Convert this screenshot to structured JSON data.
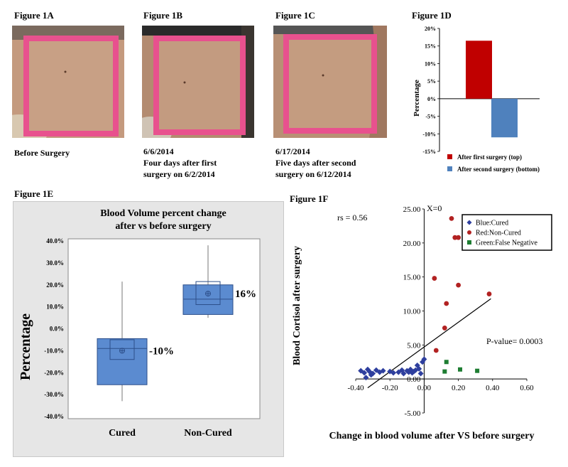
{
  "fig1a": {
    "title": "Figure 1A",
    "caption": "Before Surgery"
  },
  "fig1b": {
    "title": "Figure 1B",
    "caption_lines": [
      "6/6/2014",
      "Four days after first",
      "surgery on 6/2/2014"
    ]
  },
  "fig1c": {
    "title": "Figure 1C",
    "caption_lines": [
      "6/17/2014",
      "Five days after second",
      "surgery on 6/12/2014"
    ]
  },
  "fig1d": {
    "title": "Figure 1D"
  },
  "fig1e": {
    "title": "Figure 1E"
  },
  "fig1f": {
    "title": "Figure 1F"
  },
  "colors": {
    "red": "#c00000",
    "blue": "#4f81bd",
    "box_blue": "#5b8bd0",
    "green": "#1e7d32",
    "panel_gray": "#e6e6e6",
    "tape_pink": "#e8518e"
  },
  "chart_data": [
    {
      "id": "1D",
      "type": "bar",
      "categories": [
        "After first surgery (top)",
        "After second surgery (bottom)"
      ],
      "values": [
        16.5,
        -11
      ],
      "series_colors": [
        "#c00000",
        "#4f81bd"
      ],
      "ylabel": "Percentage",
      "ylim": [
        -15,
        20
      ],
      "yticks": [
        "20%",
        "15%",
        "10%",
        "5%",
        "0%",
        "-5%",
        "-10%",
        "-15%"
      ],
      "legend": [
        "After first surgery (top)",
        "After second surgery (bottom)"
      ],
      "legend_position": "bottom"
    },
    {
      "id": "1E",
      "type": "box",
      "title": "Blood Volume percent change after vs before surgery",
      "title_lines": [
        "Blood Volume percent change",
        "after vs before surgery"
      ],
      "ylabel": "Percentage",
      "ylim": [
        -40,
        40
      ],
      "yticks": [
        "40.0%",
        "30.0%",
        "20.0%",
        "10.0%",
        "0.0%",
        "-10.0%",
        "-20.0%",
        "-30.0%",
        "-40.0%"
      ],
      "categories": [
        "Cured",
        "Non-Cured"
      ],
      "boxes": [
        {
          "name": "Cured",
          "min": -33,
          "q1": -25.5,
          "median": -9,
          "q3": -4.5,
          "max": 21.5,
          "mean": -10,
          "ci": [
            -14,
            -5
          ],
          "label": "-10%"
        },
        {
          "name": "Non-Cured",
          "min": 5,
          "q1": 6.5,
          "median": 13.5,
          "q3": 20,
          "max": 38,
          "mean": 16,
          "ci": [
            11,
            21.5
          ],
          "label": "16%"
        }
      ]
    },
    {
      "id": "1F",
      "type": "scatter",
      "xlabel": "Change in blood volume after VS before surgery",
      "ylabel": "Blood Cortisol after surgery",
      "xlim": [
        -0.4,
        0.6
      ],
      "ylim": [
        -5,
        25
      ],
      "xticks": [
        "-0.40",
        "-0.20",
        "0.00",
        "0.20",
        "0.40",
        "0.60"
      ],
      "yticks": [
        "25.00",
        "20.00",
        "15.00",
        "10.00",
        "5.00",
        "0.00",
        "-5.00"
      ],
      "annotations": {
        "rs": "rs = 0.56",
        "x0": "X=0",
        "pvalue": "P-value= 0.0003"
      },
      "legend": [
        "Blue:Cured",
        "Red:Non-Cured",
        "Green:False Negative"
      ],
      "legend_position": "top-right",
      "trendline": {
        "x": [
          -0.33,
          0.39
        ],
        "y": [
          -1.3,
          11.8
        ]
      },
      "series": [
        {
          "name": "Blue:Cured",
          "color": "#2e3f9e",
          "marker": "diamond",
          "x": [
            -0.37,
            -0.35,
            -0.33,
            -0.32,
            -0.3,
            -0.28,
            -0.26,
            -0.24,
            -0.2,
            -0.18,
            -0.15,
            -0.13,
            -0.12,
            -0.1,
            -0.09,
            -0.08,
            -0.07,
            -0.06,
            -0.05,
            -0.04,
            -0.03,
            -0.02,
            -0.01,
            0.0,
            -0.34,
            -0.31
          ],
          "y": [
            1.2,
            0.9,
            1.4,
            1.1,
            0.8,
            1.3,
            1.0,
            1.2,
            1.1,
            0.9,
            1.0,
            1.3,
            0.8,
            1.2,
            1.0,
            1.4,
            0.9,
            1.1,
            1.3,
            2.0,
            1.5,
            0.8,
            2.5,
            2.9,
            0.2,
            0.6
          ]
        },
        {
          "name": "Red:Non-Cured",
          "color": "#b22222",
          "marker": "circle",
          "x": [
            0.06,
            0.07,
            0.12,
            0.13,
            0.16,
            0.18,
            0.2,
            0.2,
            0.38
          ],
          "y": [
            14.8,
            4.2,
            7.5,
            11.1,
            23.6,
            20.8,
            13.8,
            20.8,
            12.5
          ]
        },
        {
          "name": "Green:False Negative",
          "color": "#1e7d32",
          "marker": "square",
          "x": [
            0.13,
            0.12,
            0.21,
            0.31
          ],
          "y": [
            2.5,
            1.1,
            1.4,
            1.2
          ]
        }
      ]
    }
  ]
}
